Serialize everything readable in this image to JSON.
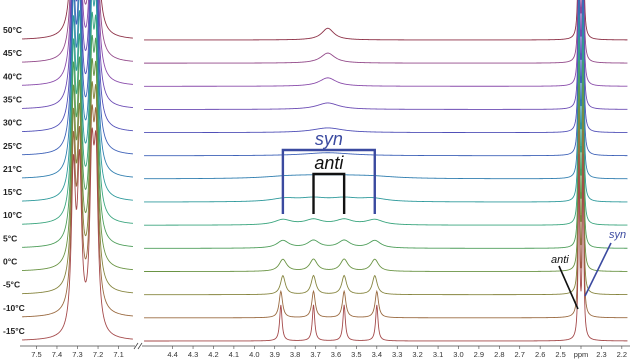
{
  "chart_data": {
    "type": "line",
    "title": "",
    "xlabel": "ppm",
    "ylabel": "",
    "x_reversed": true,
    "axis_break": "between 7.0 and 4.5 ppm",
    "x_ticks": [
      "7.5",
      "7.4",
      "7.3",
      "7.2",
      "7.1",
      "4.4",
      "4.3",
      "4.2",
      "4.1",
      "4.0",
      "3.9",
      "3.8",
      "3.7",
      "3.6",
      "3.5",
      "3.4",
      "3.3",
      "3.2",
      "3.1",
      "3.0",
      "2.9",
      "2.8",
      "2.7",
      "2.6",
      "2.5",
      "ppm",
      "2.3",
      "2.2"
    ],
    "x_tick_values": [
      7.5,
      7.4,
      7.3,
      7.2,
      7.1,
      4.4,
      4.3,
      4.2,
      4.1,
      4.0,
      3.9,
      3.8,
      3.7,
      3.6,
      3.5,
      3.4,
      3.3,
      3.2,
      3.1,
      3.0,
      2.9,
      2.8,
      2.7,
      2.6,
      2.5,
      2.4,
      2.3,
      2.2
    ],
    "series": [
      {
        "name": "50°C",
        "color": "#8c2f45",
        "methylene_peaks_ppm": [
          3.64
        ],
        "methylene_width": 0.036
      },
      {
        "name": "45°C",
        "color": "#934a8a",
        "methylene_peaks_ppm": [
          3.64
        ],
        "methylene_width": 0.042
      },
      {
        "name": "40°C",
        "color": "#8a4cab",
        "methylene_peaks_ppm": [
          3.64
        ],
        "methylene_width": 0.05
      },
      {
        "name": "35°C",
        "color": "#6c4cb4",
        "methylene_peaks_ppm": [
          3.64
        ],
        "methylene_width": 0.065
      },
      {
        "name": "30°C",
        "color": "#5150b8",
        "methylene_peaks_ppm": [
          3.64
        ],
        "methylene_width": 0.09
      },
      {
        "name": "25°C",
        "color": "#3e62b8",
        "methylene_peaks_ppm": [
          3.64
        ],
        "methylene_width": 0.14
      },
      {
        "name": "21°C",
        "color": "#317fb0",
        "methylene_peaks_ppm": [
          3.84,
          3.71,
          3.56,
          3.42
        ],
        "methylene_width": 0.14
      },
      {
        "name": "15°C",
        "color": "#2f9a9c",
        "methylene_peaks_ppm": [
          3.85,
          3.71,
          3.56,
          3.42
        ],
        "methylene_width": 0.08
      },
      {
        "name": "10°C",
        "color": "#3aa57e",
        "methylene_peaks_ppm": [
          3.86,
          3.71,
          3.56,
          3.41
        ],
        "methylene_width": 0.05
      },
      {
        "name": "5°C",
        "color": "#4e9e5a",
        "methylene_peaks_ppm": [
          3.86,
          3.71,
          3.56,
          3.41
        ],
        "methylene_width": 0.035
      },
      {
        "name": "0°C",
        "color": "#6a9444",
        "methylene_peaks_ppm": [
          3.86,
          3.71,
          3.56,
          3.41
        ],
        "methylene_width": 0.022
      },
      {
        "name": "-5°C",
        "color": "#86853f",
        "methylene_peaks_ppm": [
          3.86,
          3.71,
          3.56,
          3.41
        ],
        "methylene_width": 0.014
      },
      {
        "name": "-10°C",
        "color": "#9a6a40",
        "methylene_peaks_ppm": [
          3.87,
          3.71,
          3.56,
          3.4
        ],
        "methylene_width": 0.01
      },
      {
        "name": "-15°C",
        "color": "#a4494a",
        "methylene_peaks_ppm": [
          3.87,
          3.71,
          3.56,
          3.4
        ],
        "methylene_width": 0.007
      }
    ],
    "aromatic_peaks_ppm": [
      7.32,
      7.29,
      7.23,
      7.21
    ],
    "methyl_peaks_ppm": [
      2.41,
      2.39
    ],
    "annotations": {
      "syn_label": "syn",
      "anti_label": "anti",
      "syn_color": "#3b4aa0",
      "anti_color": "#111111",
      "syn_bracket_ppm": [
        3.86,
        3.41
      ],
      "anti_bracket_ppm": [
        3.71,
        3.56
      ],
      "methyl_anti_label": "anti",
      "methyl_syn_label": "syn"
    }
  }
}
